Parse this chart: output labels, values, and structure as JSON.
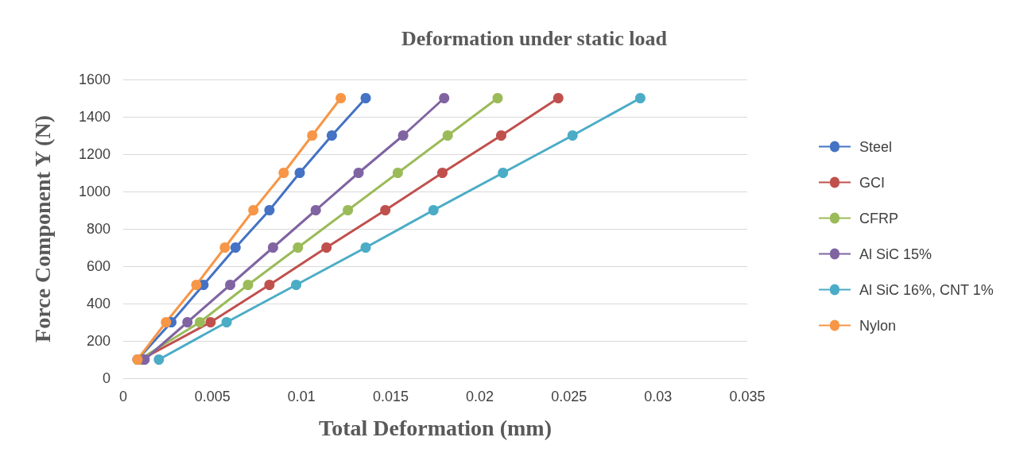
{
  "chart_data": {
    "type": "line",
    "title": "Deformation under static load",
    "xlabel": "Total Deformation (mm)",
    "ylabel": "Force Component Y (N)",
    "xlim": [
      0,
      0.035
    ],
    "xticks": [
      0,
      0.005,
      0.01,
      0.015,
      0.02,
      0.025,
      0.03,
      0.035
    ],
    "ylim": [
      0,
      1600
    ],
    "yticks": [
      0,
      200,
      400,
      600,
      800,
      1000,
      1200,
      1400,
      1600
    ],
    "grid": "y",
    "legend": "right",
    "marker": "circle",
    "line_style": "solid",
    "series": [
      {
        "name": "Steel",
        "color": "#4472c4",
        "x": [
          0.0008,
          0.0027,
          0.0045,
          0.0063,
          0.0082,
          0.0099,
          0.0117,
          0.0136
        ],
        "values": [
          100,
          300,
          500,
          700,
          900,
          1100,
          1300,
          1500
        ]
      },
      {
        "name": "GCI",
        "color": "#c0504d",
        "x": [
          0.001,
          0.0049,
          0.0082,
          0.0114,
          0.0147,
          0.0179,
          0.0212,
          0.0244
        ],
        "values": [
          100,
          300,
          500,
          700,
          900,
          1100,
          1300,
          1500
        ]
      },
      {
        "name": "CFRP",
        "color": "#9bbb59",
        "x": [
          0.0009,
          0.0043,
          0.007,
          0.0098,
          0.0126,
          0.0154,
          0.0182,
          0.021
        ],
        "values": [
          100,
          300,
          500,
          700,
          900,
          1100,
          1300,
          1500
        ]
      },
      {
        "name": "Al SiC 15%",
        "color": "#8064a2",
        "x": [
          0.0012,
          0.0036,
          0.006,
          0.0084,
          0.0108,
          0.0132,
          0.0157,
          0.018
        ],
        "values": [
          100,
          300,
          500,
          700,
          900,
          1100,
          1300,
          1500
        ]
      },
      {
        "name": "Al SiC 16%, CNT 1%",
        "color": "#4bacc6",
        "x": [
          0.002,
          0.0058,
          0.0097,
          0.0136,
          0.0174,
          0.0213,
          0.0252,
          0.029
        ],
        "values": [
          100,
          300,
          500,
          700,
          900,
          1100,
          1300,
          1500
        ]
      },
      {
        "name": "Nylon",
        "color": "#f79646",
        "x": [
          0.0008,
          0.0024,
          0.0041,
          0.0057,
          0.0073,
          0.009,
          0.0106,
          0.0122
        ],
        "values": [
          100,
          300,
          500,
          700,
          900,
          1100,
          1300,
          1500
        ]
      }
    ]
  }
}
